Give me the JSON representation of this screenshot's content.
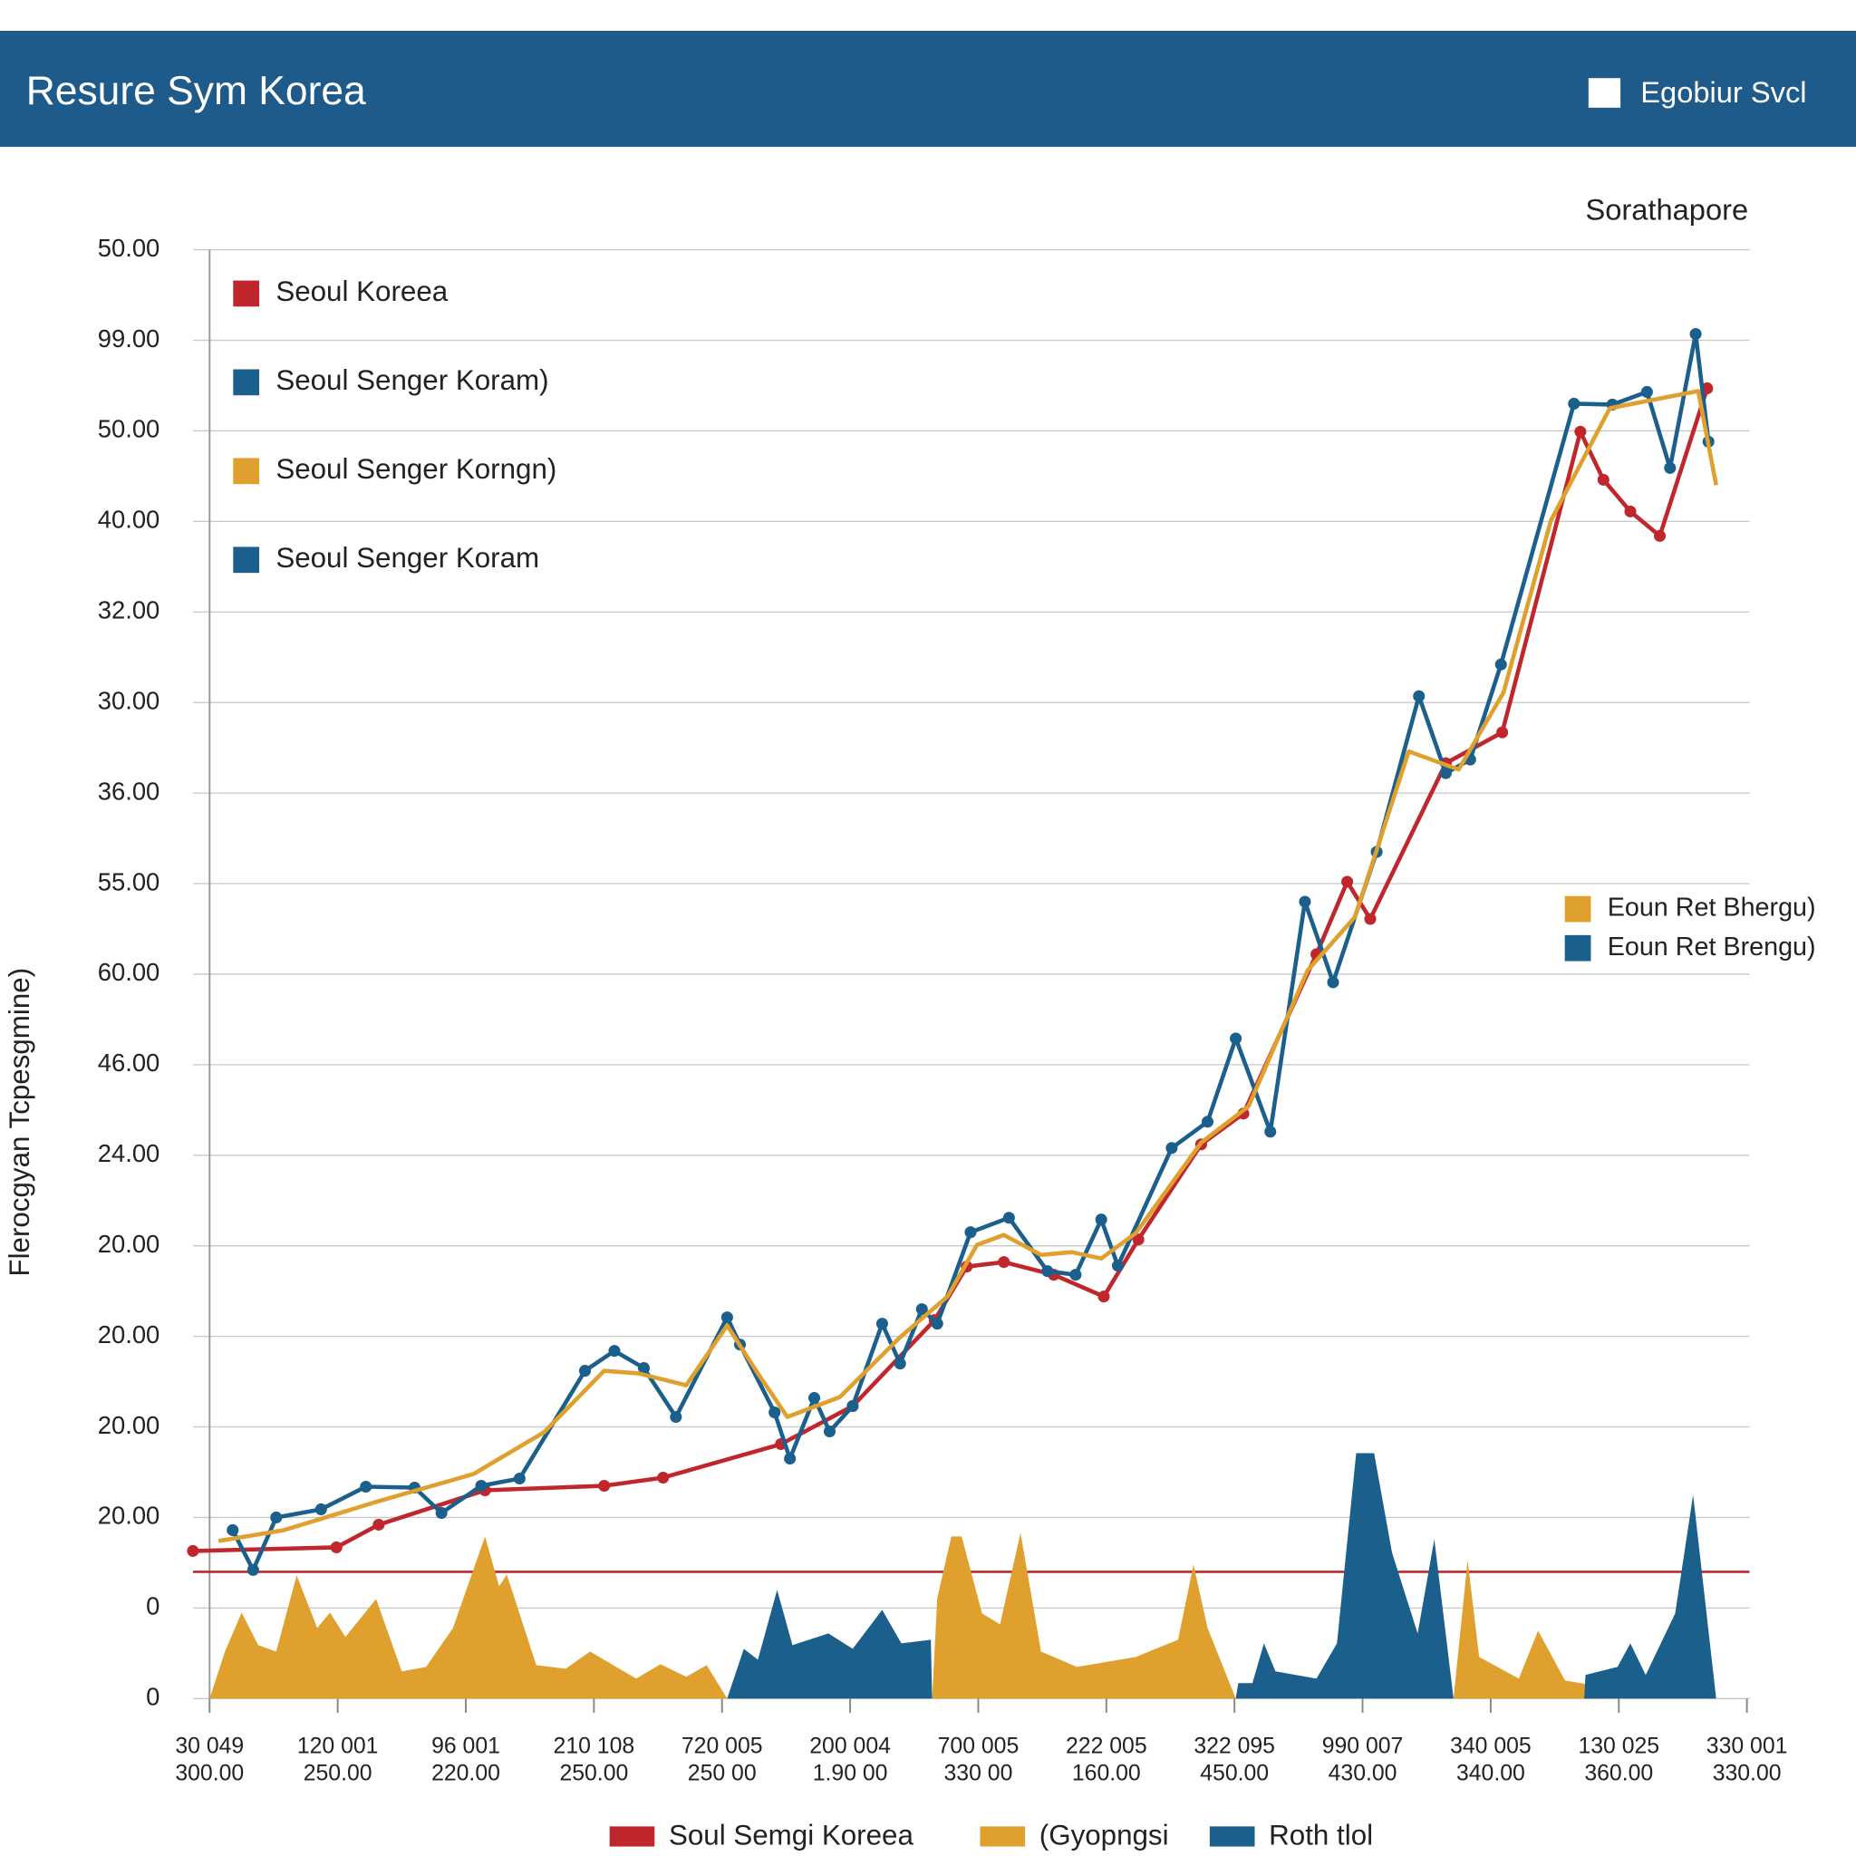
{
  "header": {
    "title": "Resure Sym Korea",
    "toggle_label": "Egobiur Svcl"
  },
  "chart_data": {
    "type": "line",
    "subtitle": "Sorathapore",
    "y_label": "Flerocgyan Tcpesgmine)",
    "xlim": [
      -0.13,
      12.02
    ],
    "ylim": [
      0,
      16
    ],
    "grid": true,
    "yticks": [
      0,
      {
        "value": 1,
        "label": "0"
      },
      {
        "value": 2,
        "label": "20.00"
      },
      {
        "value": 3,
        "label": "20.00"
      },
      {
        "value": 4,
        "label": "20.00"
      },
      {
        "value": 5,
        "label": "20.00"
      },
      {
        "value": 6,
        "label": "24.00"
      },
      {
        "value": 7,
        "label": "46.00"
      },
      {
        "value": 8,
        "label": "60.00"
      },
      {
        "value": 9,
        "label": "55.00"
      },
      {
        "value": 10,
        "label": "36.00"
      },
      {
        "value": 11,
        "label": "30.00"
      },
      {
        "value": 12,
        "label": "32.00"
      },
      {
        "value": 13,
        "label": "40.00"
      },
      {
        "value": 14,
        "label": "50.00"
      },
      {
        "value": 15,
        "label": "99.00"
      },
      {
        "value": 16,
        "label": "50.00"
      }
    ],
    "xticks": [
      {
        "value": 0,
        "label": [
          "30 049",
          "300.00"
        ]
      },
      {
        "value": 1,
        "label": [
          "120 001",
          "250.00"
        ]
      },
      {
        "value": 2,
        "label": [
          "96 001",
          "220.00"
        ]
      },
      {
        "value": 3,
        "label": [
          "210 108",
          "250.00"
        ]
      },
      {
        "value": 4,
        "label": [
          "720 005",
          "250 00"
        ]
      },
      {
        "value": 5,
        "label": [
          "200 004",
          "1.90 00"
        ]
      },
      {
        "value": 6,
        "label": [
          "700 005",
          "330 00"
        ]
      },
      {
        "value": 7,
        "label": [
          "222 005",
          "160.00"
        ]
      },
      {
        "value": 8,
        "label": [
          "322 095",
          "450.00"
        ]
      },
      {
        "value": 9,
        "label": [
          "990 007",
          "430.00"
        ]
      },
      {
        "value": 10,
        "label": [
          "340 005",
          "340.00"
        ]
      },
      {
        "value": 11,
        "label": [
          "130 025",
          "360.00"
        ]
      },
      {
        "value": 12,
        "label": [
          "330 001",
          "330.00"
        ]
      }
    ],
    "reference_line": {
      "value": 1.4,
      "color": "#c0272d"
    },
    "series": [
      {
        "name": "Seoul Koreea",
        "type": "line",
        "markers": true,
        "color": "#c0272d",
        "x": [
          -0.13,
          0.99,
          1.32,
          2.15,
          3.08,
          3.54,
          4.46,
          5.02,
          5.66,
          5.91,
          6.2,
          6.59,
          6.98,
          7.25,
          7.74,
          8.07,
          8.64,
          8.88,
          9.06,
          9.65,
          10.09,
          10.7,
          10.88,
          11.09,
          11.32,
          11.69
        ],
        "values": [
          1.63,
          1.67,
          1.92,
          2.3,
          2.35,
          2.44,
          2.81,
          3.23,
          4.18,
          4.77,
          4.82,
          4.68,
          4.44,
          5.07,
          6.12,
          6.46,
          8.22,
          9.02,
          8.61,
          10.33,
          10.67,
          13.99,
          13.46,
          13.11,
          12.84,
          14.47
        ]
      },
      {
        "name": "Seoul Senger Koram)",
        "type": "line",
        "markers": true,
        "color": "#1b5f8c",
        "x": [
          0.18,
          0.34,
          0.52,
          0.87,
          1.22,
          1.6,
          1.81,
          2.12,
          2.42,
          2.93,
          3.16,
          3.39,
          3.64,
          4.04,
          4.14,
          4.41,
          4.53,
          4.72,
          4.84,
          5.02,
          5.25,
          5.39,
          5.56,
          5.68,
          5.94,
          6.24,
          6.54,
          6.76,
          6.96,
          7.09,
          7.51,
          7.79,
          8.01,
          8.28,
          8.55,
          8.77,
          9.11,
          9.44,
          9.65,
          9.84,
          10.08,
          10.65,
          10.95,
          11.22,
          11.4,
          11.6,
          11.7
        ],
        "values": [
          1.86,
          1.42,
          2.0,
          2.09,
          2.34,
          2.33,
          2.05,
          2.35,
          2.43,
          3.62,
          3.84,
          3.65,
          3.11,
          4.21,
          3.91,
          3.16,
          2.65,
          3.32,
          2.95,
          3.23,
          4.14,
          3.7,
          4.3,
          4.14,
          5.15,
          5.31,
          4.72,
          4.68,
          5.29,
          4.78,
          6.08,
          6.37,
          7.29,
          6.26,
          8.8,
          7.91,
          9.35,
          11.07,
          10.22,
          10.37,
          11.42,
          14.3,
          14.29,
          14.43,
          13.59,
          15.07,
          13.88
        ]
      },
      {
        "name": "Seoul Senger Korngn)",
        "type": "line",
        "markers": false,
        "color": "#e0a02e",
        "x": [
          0.07,
          0.58,
          1.32,
          2.06,
          2.61,
          3.08,
          3.35,
          3.72,
          4.04,
          4.28,
          4.51,
          4.92,
          5.39,
          5.76,
          5.99,
          6.2,
          6.49,
          6.73,
          6.96,
          7.23,
          7.74,
          8.11,
          8.57,
          8.94,
          9.36,
          9.75,
          10.1,
          10.47,
          10.93,
          11.62,
          11.76
        ],
        "values": [
          1.74,
          1.86,
          2.18,
          2.48,
          2.94,
          3.62,
          3.59,
          3.46,
          4.12,
          3.59,
          3.11,
          3.33,
          3.99,
          4.44,
          5.01,
          5.12,
          4.9,
          4.93,
          4.86,
          5.14,
          6.14,
          6.54,
          8.04,
          8.63,
          10.46,
          10.26,
          11.11,
          13.01,
          14.25,
          14.44,
          13.4
        ]
      },
      {
        "name": "Eoun Ret Bhergu)",
        "type": "area",
        "markers": false,
        "color": "#e0a02e",
        "x": [
          0,
          0.12,
          0.25,
          0.38,
          0.52,
          0.68,
          0.84,
          0.94,
          1.06,
          1.3,
          1.5,
          1.69,
          1.9,
          2.15,
          2.26,
          2.32,
          2.55,
          2.78,
          2.97,
          3.33,
          3.52,
          3.72,
          3.88,
          4.04,
          null,
          5.64,
          5.68,
          5.79,
          5.87,
          6.03,
          6.17,
          6.33,
          6.49,
          6.77,
          7.23,
          7.56,
          7.68,
          7.79,
          8.01,
          null,
          9.71,
          9.82,
          9.91,
          10.22,
          10.37,
          10.58,
          10.86,
          10.87
        ],
        "values": [
          0,
          0.52,
          0.95,
          0.59,
          0.52,
          1.36,
          0.78,
          0.95,
          0.68,
          1.1,
          0.3,
          0.35,
          0.78,
          1.79,
          1.24,
          1.37,
          0.37,
          0.33,
          0.52,
          0.22,
          0.38,
          0.24,
          0.37,
          0,
          null,
          0,
          1.11,
          1.79,
          1.79,
          0.94,
          0.82,
          1.83,
          0.52,
          0.35,
          0.46,
          0.65,
          1.48,
          0.78,
          0,
          null,
          0,
          1.53,
          0.46,
          0.22,
          0.75,
          0.2,
          0.13,
          0
        ]
      },
      {
        "name": "Eoun Ret Brengu)",
        "type": "area",
        "markers": false,
        "color": "#1b5f8c",
        "x": [
          4.04,
          4.17,
          4.28,
          4.43,
          4.55,
          4.83,
          5.02,
          5.25,
          5.4,
          5.63,
          5.64,
          null,
          8.01,
          8.03,
          8.14,
          8.23,
          8.32,
          8.64,
          8.8,
          8.95,
          9.09,
          9.23,
          9.43,
          9.56,
          9.71,
          null,
          10.73,
          10.74,
          10.99,
          11.09,
          11.21,
          11.44,
          11.58,
          11.76
        ],
        "values": [
          0,
          0.55,
          0.43,
          1.2,
          0.59,
          0.72,
          0.55,
          0.98,
          0.61,
          0.65,
          0,
          null,
          0,
          0.17,
          0.17,
          0.61,
          0.3,
          0.22,
          0.61,
          2.71,
          2.71,
          1.61,
          0.72,
          1.76,
          0,
          null,
          0,
          0.26,
          0.35,
          0.61,
          0.26,
          0.94,
          2.25,
          0
        ]
      }
    ],
    "extra_legend": [
      {
        "label": "Seoul Senger Koram",
        "color": "#1b5f8c"
      }
    ],
    "bottom_legend": [
      {
        "label": "Soul Semgi Koreea",
        "color": "#c0272d"
      },
      {
        "label": "(Gyopngsi",
        "color": "#e0a02e"
      },
      {
        "label": "Roth tlol",
        "color": "#1b5f8c"
      }
    ]
  }
}
